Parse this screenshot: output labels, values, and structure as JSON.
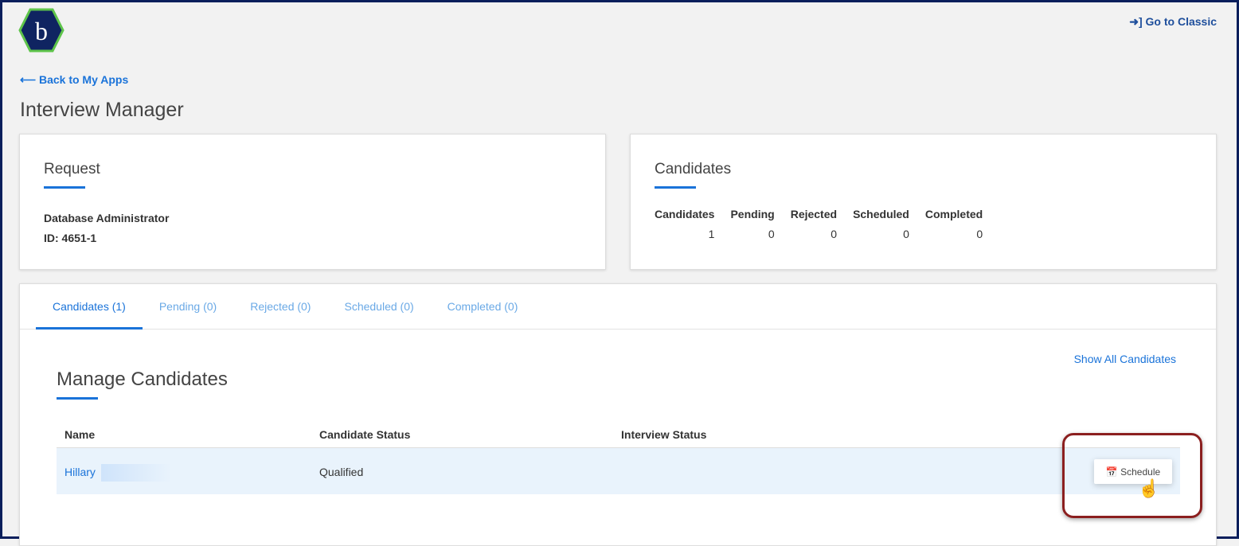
{
  "header": {
    "logo_letter": "b",
    "go_classic": "Go to Classic",
    "back": "Back to My Apps",
    "title": "Interview Manager"
  },
  "request": {
    "title": "Request",
    "job": "Database Administrator",
    "id": "ID: 4651-1"
  },
  "candidates_card": {
    "title": "Candidates",
    "stats": [
      {
        "label": "Candidates",
        "value": "1"
      },
      {
        "label": "Pending",
        "value": "0"
      },
      {
        "label": "Rejected",
        "value": "0"
      },
      {
        "label": "Scheduled",
        "value": "0"
      },
      {
        "label": "Completed",
        "value": "0"
      }
    ]
  },
  "tabs": [
    {
      "label": "Candidates (1)",
      "active": true
    },
    {
      "label": "Pending (0)"
    },
    {
      "label": "Rejected (0)"
    },
    {
      "label": "Scheduled (0)"
    },
    {
      "label": "Completed (0)"
    }
  ],
  "manage": {
    "title": "Manage Candidates",
    "show_all": "Show All Candidates",
    "columns": [
      "Name",
      "Candidate Status",
      "Interview Status"
    ],
    "rows": [
      {
        "name": "Hillary",
        "candidate_status": "Qualified",
        "interview_status": "",
        "action": "Schedule"
      }
    ]
  },
  "colors": {
    "accent": "#1a73d9",
    "border": "#0b1f5c",
    "highlight": "#8b1f1f",
    "row_bg": "#e9f3fc"
  }
}
